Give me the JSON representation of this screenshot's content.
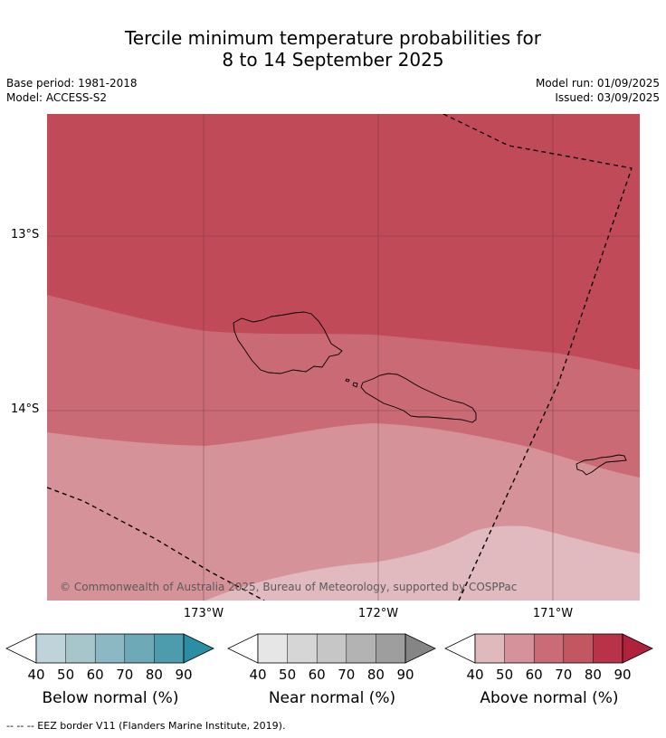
{
  "title_line1": "Tercile minimum temperature probabilities for",
  "title_line2": "8 to 14 September 2025",
  "base_period": "Base period: 1981-2018",
  "model": "Model: ACCESS-S2",
  "model_run": "Model run: 01/09/2025",
  "issued": "Issued: 03/09/2025",
  "lat_labels": [
    "13°S",
    "14°S"
  ],
  "lon_labels": [
    "173°W",
    "172°W",
    "171°W"
  ],
  "copyright": "© Commonwealth of Australia 2025, Bureau of Meteorology, supported by COSPPac",
  "colorbars": [
    {
      "title": "Below normal (%)",
      "ticks": [
        "40",
        "50",
        "60",
        "70",
        "80",
        "90"
      ],
      "colors": [
        "#ffffff",
        "#bfd4da",
        "#a6c6cc",
        "#8bb8c3",
        "#6ea9b8",
        "#4c9cae",
        "#2b8ea3"
      ]
    },
    {
      "title": "Near normal (%)",
      "ticks": [
        "40",
        "50",
        "60",
        "70",
        "80",
        "90"
      ],
      "colors": [
        "#ffffff",
        "#e6e6e6",
        "#d6d6d6",
        "#c6c6c6",
        "#b3b3b3",
        "#9e9e9e",
        "#858585"
      ]
    },
    {
      "title": "Above normal (%)",
      "ticks": [
        "40",
        "50",
        "60",
        "70",
        "80",
        "90"
      ],
      "colors": [
        "#ffffff",
        "#e0b9bd",
        "#d5929a",
        "#cb6b76",
        "#c25661",
        "#b93348",
        "#b0213c"
      ]
    }
  ],
  "footnote": "--  --  -- EEZ border V11 (Flanders Marine Institute, 2019).",
  "map_colors": {
    "band_80": "#c04a58",
    "band_70": "#c96a75",
    "band_60": "#d69299",
    "band_50": "#e0babf"
  }
}
